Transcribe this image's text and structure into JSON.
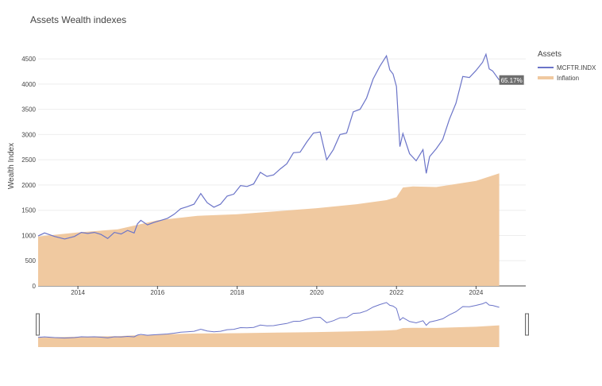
{
  "chart_data": {
    "type": "area",
    "title": "Assets Wealth indexes",
    "xlabel": "",
    "ylabel": "Wealth Index",
    "ylim": [
      0,
      4800
    ],
    "xlim": [
      "2013-01-01",
      "2025-04-01"
    ],
    "yticks": [
      "0",
      "500",
      "1000",
      "1500",
      "2000",
      "2500",
      "3000",
      "3500",
      "4000",
      "4500"
    ],
    "xticks": [
      "2014",
      "2016",
      "2018",
      "2020",
      "2022",
      "2024"
    ],
    "legend_title": "Assets",
    "legend_position": "top-right",
    "end_label": "65.17%",
    "colors": {
      "index_line": "#6b74c8",
      "inflation_fill": "#f0c9a0",
      "end_label_bg": "#6e6e6e"
    },
    "series": [
      {
        "name": "MCFTR.INDX",
        "kind": "line",
        "points": [
          [
            "2013-01-01",
            990
          ],
          [
            "2013-03-01",
            1050
          ],
          [
            "2013-06-01",
            980
          ],
          [
            "2013-09-01",
            930
          ],
          [
            "2013-12-01",
            980
          ],
          [
            "2014-02-01",
            1060
          ],
          [
            "2014-04-01",
            1040
          ],
          [
            "2014-06-01",
            1060
          ],
          [
            "2014-08-01",
            1020
          ],
          [
            "2014-10-01",
            940
          ],
          [
            "2014-12-01",
            1060
          ],
          [
            "2015-02-01",
            1030
          ],
          [
            "2015-04-01",
            1100
          ],
          [
            "2015-06-01",
            1050
          ],
          [
            "2015-07-01",
            1230
          ],
          [
            "2015-08-01",
            1300
          ],
          [
            "2015-10-01",
            1210
          ],
          [
            "2015-12-01",
            1260
          ],
          [
            "2016-02-01",
            1300
          ],
          [
            "2016-04-01",
            1340
          ],
          [
            "2016-06-01",
            1420
          ],
          [
            "2016-08-01",
            1530
          ],
          [
            "2016-10-01",
            1570
          ],
          [
            "2016-12-01",
            1620
          ],
          [
            "2017-02-01",
            1830
          ],
          [
            "2017-04-01",
            1650
          ],
          [
            "2017-06-01",
            1560
          ],
          [
            "2017-08-01",
            1620
          ],
          [
            "2017-10-01",
            1780
          ],
          [
            "2017-12-01",
            1820
          ],
          [
            "2018-02-01",
            1990
          ],
          [
            "2018-04-01",
            1970
          ],
          [
            "2018-06-01",
            2020
          ],
          [
            "2018-08-01",
            2250
          ],
          [
            "2018-10-01",
            2170
          ],
          [
            "2018-12-01",
            2200
          ],
          [
            "2019-02-01",
            2320
          ],
          [
            "2019-04-01",
            2420
          ],
          [
            "2019-06-01",
            2640
          ],
          [
            "2019-08-01",
            2650
          ],
          [
            "2019-10-01",
            2850
          ],
          [
            "2019-12-01",
            3030
          ],
          [
            "2020-02-01",
            3050
          ],
          [
            "2020-04-01",
            2500
          ],
          [
            "2020-06-01",
            2700
          ],
          [
            "2020-08-01",
            3000
          ],
          [
            "2020-10-01",
            3030
          ],
          [
            "2020-12-01",
            3450
          ],
          [
            "2021-02-01",
            3500
          ],
          [
            "2021-04-01",
            3720
          ],
          [
            "2021-06-01",
            4100
          ],
          [
            "2021-08-01",
            4350
          ],
          [
            "2021-10-01",
            4560
          ],
          [
            "2021-11-01",
            4280
          ],
          [
            "2021-12-01",
            4200
          ],
          [
            "2022-01-01",
            3950
          ],
          [
            "2022-02-01",
            2760
          ],
          [
            "2022-03-01",
            3020
          ],
          [
            "2022-05-01",
            2620
          ],
          [
            "2022-07-01",
            2480
          ],
          [
            "2022-09-01",
            2700
          ],
          [
            "2022-10-01",
            2230
          ],
          [
            "2022-11-01",
            2560
          ],
          [
            "2023-01-01",
            2720
          ],
          [
            "2023-03-01",
            2900
          ],
          [
            "2023-05-01",
            3300
          ],
          [
            "2023-07-01",
            3620
          ],
          [
            "2023-09-01",
            4150
          ],
          [
            "2023-11-01",
            4130
          ],
          [
            "2024-01-01",
            4270
          ],
          [
            "2024-03-01",
            4430
          ],
          [
            "2024-04-01",
            4590
          ],
          [
            "2024-05-01",
            4300
          ],
          [
            "2024-06-01",
            4260
          ],
          [
            "2024-08-01",
            4080
          ]
        ]
      },
      {
        "name": "Inflation",
        "kind": "area",
        "points": [
          [
            "2013-01-01",
            980
          ],
          [
            "2014-01-01",
            1060
          ],
          [
            "2015-01-01",
            1120
          ],
          [
            "2016-01-01",
            1300
          ],
          [
            "2017-01-01",
            1390
          ],
          [
            "2018-01-01",
            1420
          ],
          [
            "2019-01-01",
            1480
          ],
          [
            "2020-01-01",
            1540
          ],
          [
            "2021-01-01",
            1620
          ],
          [
            "2021-10-01",
            1700
          ],
          [
            "2022-01-01",
            1760
          ],
          [
            "2022-03-01",
            1950
          ],
          [
            "2022-06-01",
            1970
          ],
          [
            "2023-01-01",
            1960
          ],
          [
            "2024-01-01",
            2080
          ],
          [
            "2024-08-01",
            2230
          ]
        ]
      }
    ]
  }
}
